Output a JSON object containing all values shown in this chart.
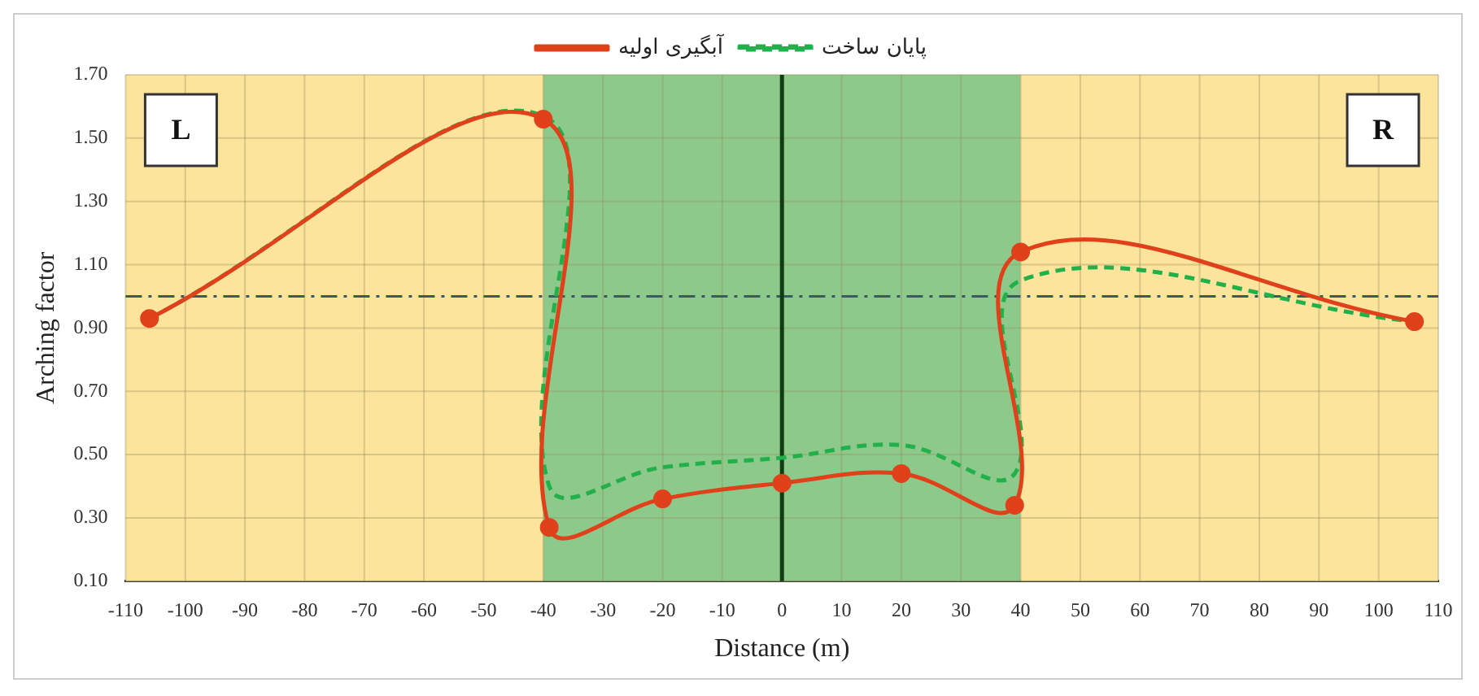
{
  "chart_data": {
    "type": "line",
    "xlabel": "Distance (m)",
    "ylabel": "Arching factor",
    "series": [
      {
        "name": "آبگیری اولیه",
        "color": "#e0401a",
        "marker": "circle",
        "line_style": "solid",
        "x": [
          -106,
          -40,
          -39,
          -20,
          0,
          20,
          39,
          40,
          106
        ],
        "values": [
          0.93,
          1.56,
          0.27,
          0.36,
          0.41,
          0.44,
          0.34,
          1.14,
          0.92
        ]
      },
      {
        "name": "پایان ساخت",
        "color": "#22b04a",
        "marker": "none",
        "line_style": "dashed",
        "x": [
          -106,
          -40,
          -39,
          -20,
          0,
          20,
          39,
          40,
          106
        ],
        "values": [
          0.93,
          1.57,
          0.4,
          0.46,
          0.49,
          0.53,
          0.44,
          1.05,
          0.92
        ]
      }
    ],
    "xlim": [
      -110,
      110
    ],
    "xticks": [
      -110,
      -100,
      -90,
      -80,
      -70,
      -60,
      -50,
      -40,
      -30,
      -20,
      -10,
      0,
      10,
      20,
      30,
      40,
      50,
      60,
      70,
      80,
      90,
      100,
      110
    ],
    "ylim": [
      0.1,
      1.7
    ],
    "yticks": [
      {
        "value": 0.1,
        "label": "0.10"
      },
      {
        "value": 0.3,
        "label": "0.30"
      },
      {
        "value": 0.5,
        "label": "0.50"
      },
      {
        "value": 0.7,
        "label": "0.70"
      },
      {
        "value": 0.9,
        "label": "0.90"
      },
      {
        "value": 1.1,
        "label": "1.10"
      },
      {
        "value": 1.3,
        "label": "1.30"
      },
      {
        "value": 1.5,
        "label": "1.50"
      },
      {
        "value": 1.7,
        "label": "1.70"
      }
    ],
    "bands": [
      {
        "axis": "x",
        "from": -110,
        "to": -40,
        "color": "#fde49c"
      },
      {
        "axis": "x",
        "from": -40,
        "to": 40,
        "color": "#8ec98c"
      },
      {
        "axis": "x",
        "from": 40,
        "to": 110,
        "color": "#fde49c"
      }
    ],
    "ref_lines": [
      {
        "axis": "y",
        "value": 1.0,
        "color": "#3a5a60",
        "line_style": "dashdot"
      },
      {
        "axis": "x",
        "value": 0,
        "color": "#0f3d10",
        "line_style": "solid"
      }
    ],
    "annotations": [
      "L",
      "R"
    ],
    "grid": true,
    "legend": "top"
  }
}
